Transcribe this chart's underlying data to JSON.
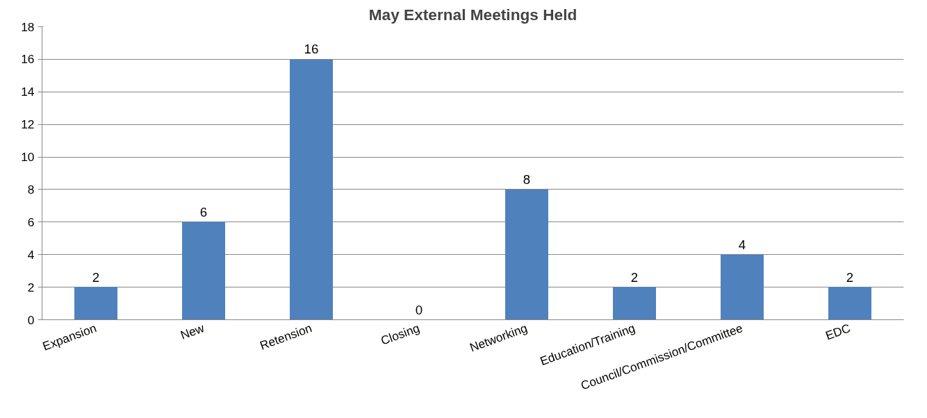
{
  "chart_data": {
    "type": "bar",
    "title": "May External Meetings Held",
    "categories": [
      "Expansion",
      "New",
      "Retension",
      "Closing",
      "Networking",
      "Education/Training",
      "Council/Commission/Committee",
      "EDC"
    ],
    "values": [
      2,
      6,
      16,
      0,
      8,
      2,
      4,
      2
    ],
    "color": "#4f81bd",
    "ylim": [
      0,
      18
    ],
    "yticks": [
      0,
      2,
      4,
      6,
      8,
      10,
      12,
      14,
      16,
      18
    ],
    "grid": "y",
    "data_labels": true
  }
}
